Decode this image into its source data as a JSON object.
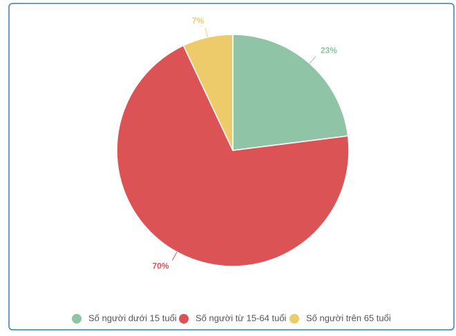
{
  "chart_data": {
    "type": "pie",
    "categories": [
      "Số người dưới 15 tuổi",
      "Số người từ 15-64 tuổi",
      "Số người trên 65 tuổi"
    ],
    "values": [
      23,
      70,
      7
    ],
    "value_labels": [
      "23%",
      "70%",
      "7%"
    ],
    "colors": [
      "#8fc4a7",
      "#dc5356",
      "#eecb6a"
    ],
    "legend": "bottom"
  }
}
